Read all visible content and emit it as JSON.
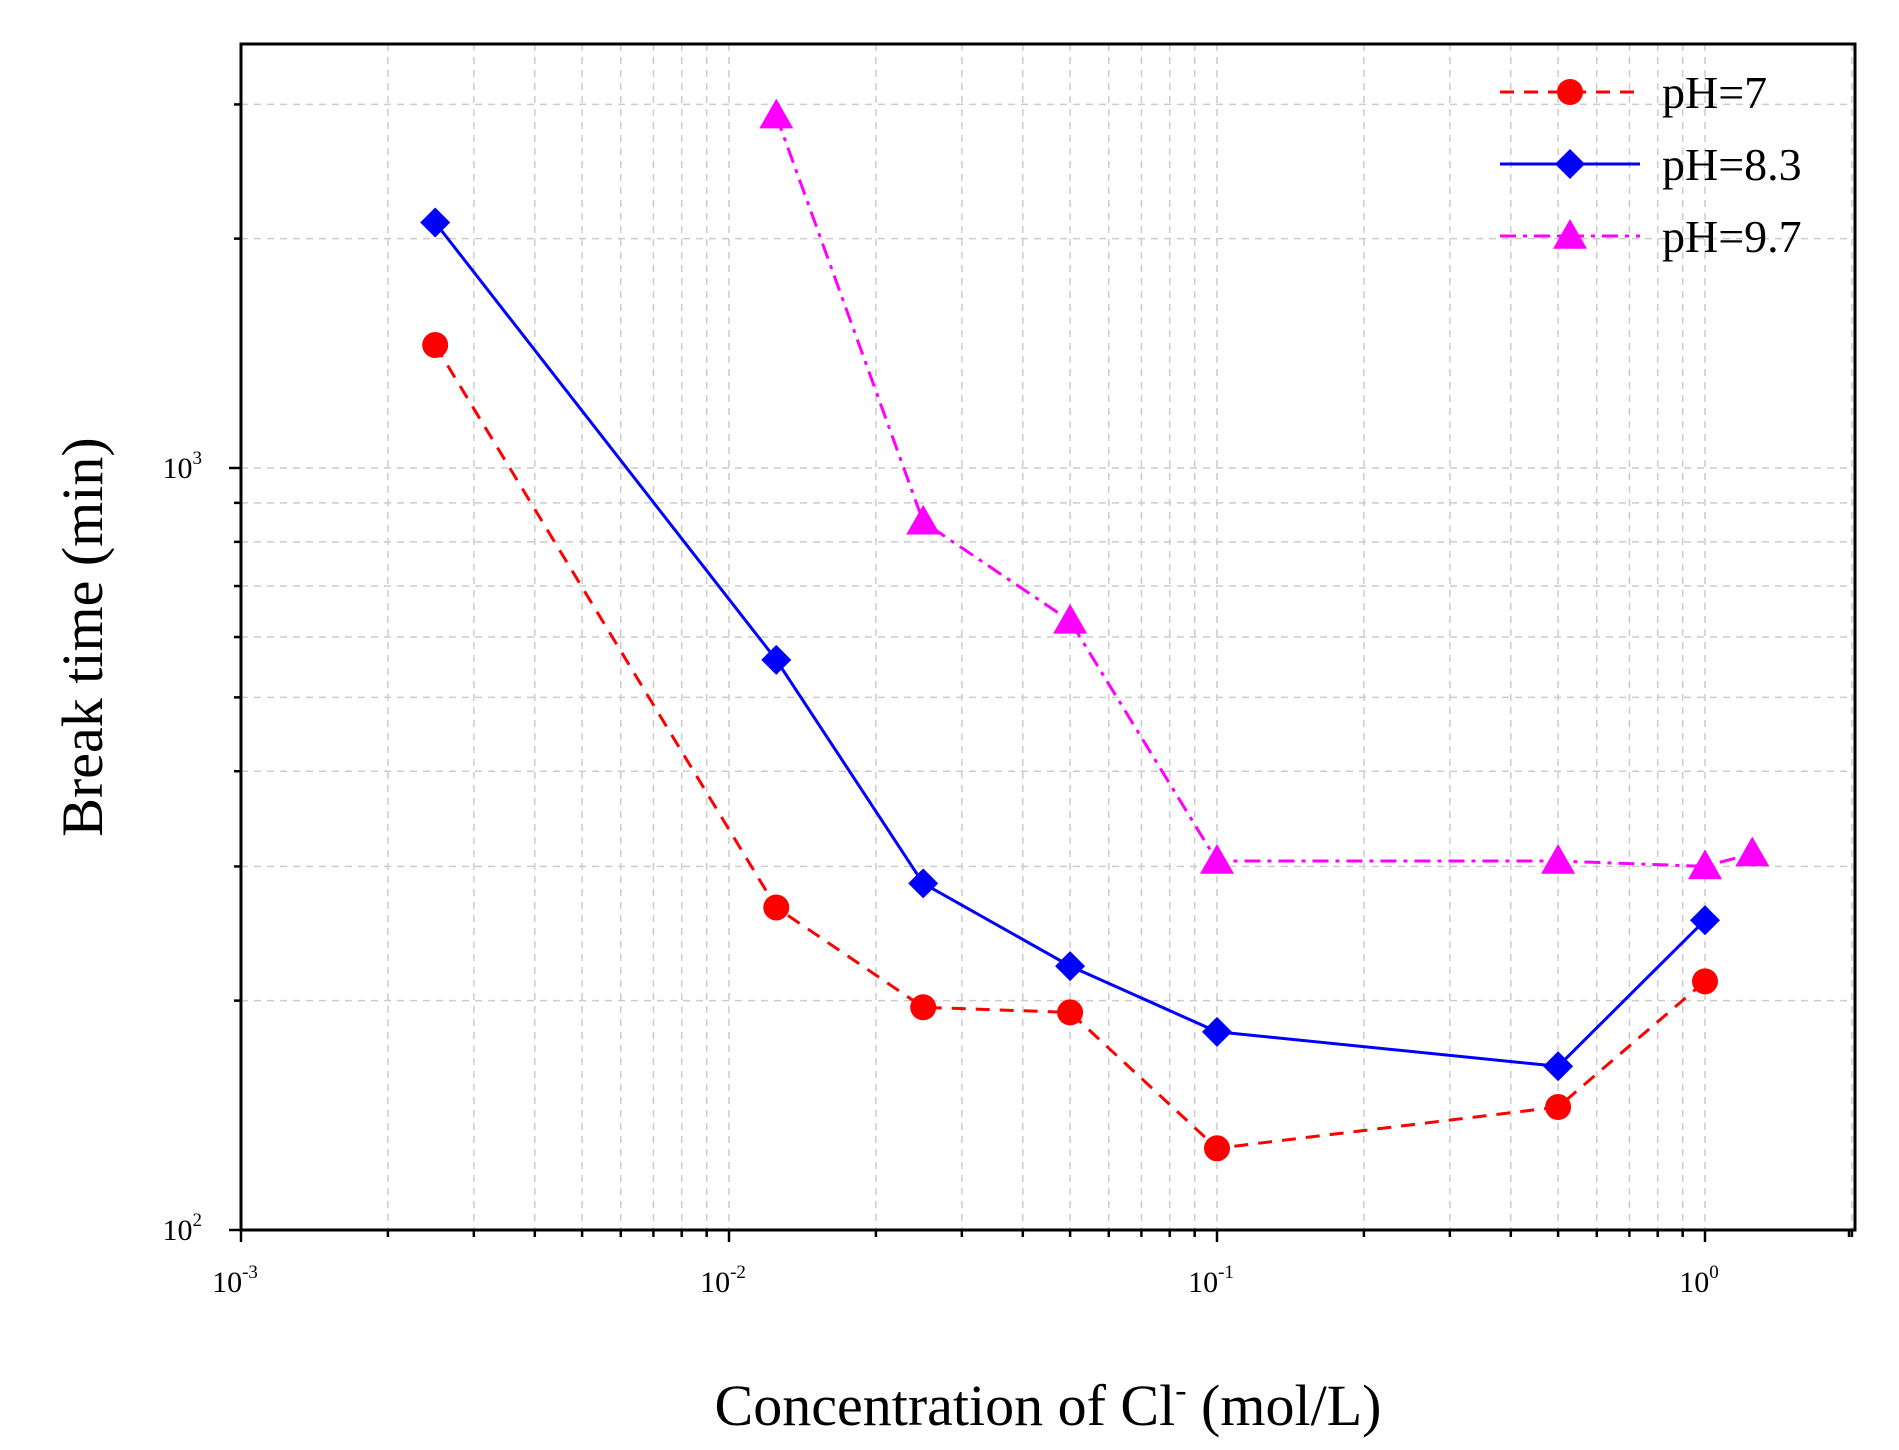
{
  "chart_data": {
    "type": "line",
    "x_scale": "log",
    "y_scale": "log",
    "xlabel": "Concentration of Cl",
    "xlabel_sup": "-",
    "xlabel_unit": " (mol/L)",
    "ylabel": "Break time (min)",
    "xlim": [
      0.001,
      2
    ],
    "ylim": [
      100,
      3500
    ],
    "grid": true,
    "legend_position": "top-right",
    "x_ticks": [
      {
        "value": 0.001,
        "base": "10",
        "exp": "-3"
      },
      {
        "value": 0.01,
        "base": "10",
        "exp": "-2"
      },
      {
        "value": 0.1,
        "base": "10",
        "exp": "-1"
      },
      {
        "value": 1,
        "base": "10",
        "exp": "0"
      }
    ],
    "y_ticks": [
      {
        "value": 100,
        "base": "10",
        "exp": "2"
      },
      {
        "value": 1000,
        "base": "10",
        "exp": "3"
      }
    ],
    "series": [
      {
        "name": "pH=7",
        "color": "#ff0000",
        "line_style": "dashed",
        "marker": "circle",
        "x": [
          0.0025,
          0.0125,
          0.025,
          0.05,
          0.1,
          0.5,
          1.0
        ],
        "y": [
          1450,
          265,
          196,
          193,
          128,
          145,
          212
        ]
      },
      {
        "name": "pH=8.3",
        "color": "#0000ff",
        "line_style": "solid",
        "marker": "diamond",
        "x": [
          0.0025,
          0.0125,
          0.025,
          0.05,
          0.1,
          0.5,
          1.0
        ],
        "y": [
          2100,
          560,
          285,
          222,
          182,
          164,
          255
        ]
      },
      {
        "name": "pH=9.7",
        "color": "#ff00ff",
        "line_style": "dash-dot",
        "marker": "triangle",
        "x": [
          0.0125,
          0.025,
          0.05,
          0.1,
          0.5,
          1.0,
          1.25
        ],
        "y": [
          2900,
          850,
          630,
          305,
          305,
          300,
          312
        ]
      }
    ]
  }
}
